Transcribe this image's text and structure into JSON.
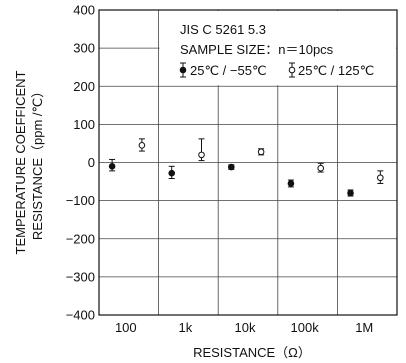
{
  "chart_data": {
    "type": "scatter",
    "title": "",
    "xlabel": "RESISTANCE（Ω）",
    "ylabel": "TEMPERATURE COEFFICENT\nRESISTANCE（ppm /℃）",
    "ylim": [
      -400,
      400
    ],
    "yticks": [
      -400,
      -300,
      -200,
      -100,
      0,
      100,
      200,
      300,
      400
    ],
    "ytick_labels": [
      "−400",
      "−300",
      "−200",
      "−100",
      "0",
      "100",
      "200",
      "300",
      "400"
    ],
    "categories": [
      "100",
      "1k",
      "10k",
      "100k",
      "1M"
    ],
    "grid": true,
    "legend": {
      "placement": "top-right",
      "header_lines": [
        "JIS  C  5261  5.3",
        "SAMPLE  SIZE：n＝10pcs"
      ]
    },
    "series": [
      {
        "name": "25℃ / −55℃",
        "marker": "filled-circle",
        "points": [
          {
            "category": "100",
            "y": -10,
            "ymin": -22,
            "ymax": 8
          },
          {
            "category": "1k",
            "y": -28,
            "ymin": -42,
            "ymax": -10
          },
          {
            "category": "10k",
            "y": -12,
            "ymin": -18,
            "ymax": -6
          },
          {
            "category": "100k",
            "y": -55,
            "ymin": -64,
            "ymax": -46
          },
          {
            "category": "1M",
            "y": -80,
            "ymin": -88,
            "ymax": -72
          }
        ]
      },
      {
        "name": "25℃ / 125℃",
        "marker": "open-circle",
        "points": [
          {
            "category": "100",
            "y": 45,
            "ymin": 30,
            "ymax": 62
          },
          {
            "category": "1k",
            "y": 20,
            "ymin": 5,
            "ymax": 62
          },
          {
            "category": "10k",
            "y": 28,
            "ymin": 20,
            "ymax": 36
          },
          {
            "category": "100k",
            "y": -15,
            "ymin": -25,
            "ymax": -2
          },
          {
            "category": "1M",
            "y": -40,
            "ymin": -55,
            "ymax": -22
          }
        ]
      }
    ]
  }
}
